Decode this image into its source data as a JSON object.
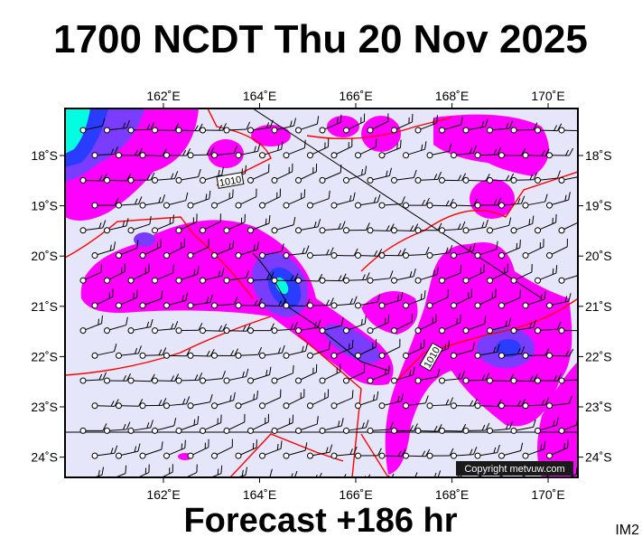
{
  "header": {
    "title": "1700 NCDT Thu 20 Nov 2025"
  },
  "map": {
    "lon_labels": [
      "162˚E",
      "164˚E",
      "166˚E",
      "168˚E",
      "170˚E"
    ],
    "lat_labels": [
      "18˚S",
      "19˚S",
      "20˚S",
      "21˚S",
      "22˚S",
      "23˚S",
      "24˚S"
    ],
    "isobar_labels": [
      "1010",
      "1010"
    ],
    "copyright": "Copyright metvuw.com"
  },
  "footer": {
    "forecast": "Forecast +186 hr",
    "code": "IM2"
  }
}
